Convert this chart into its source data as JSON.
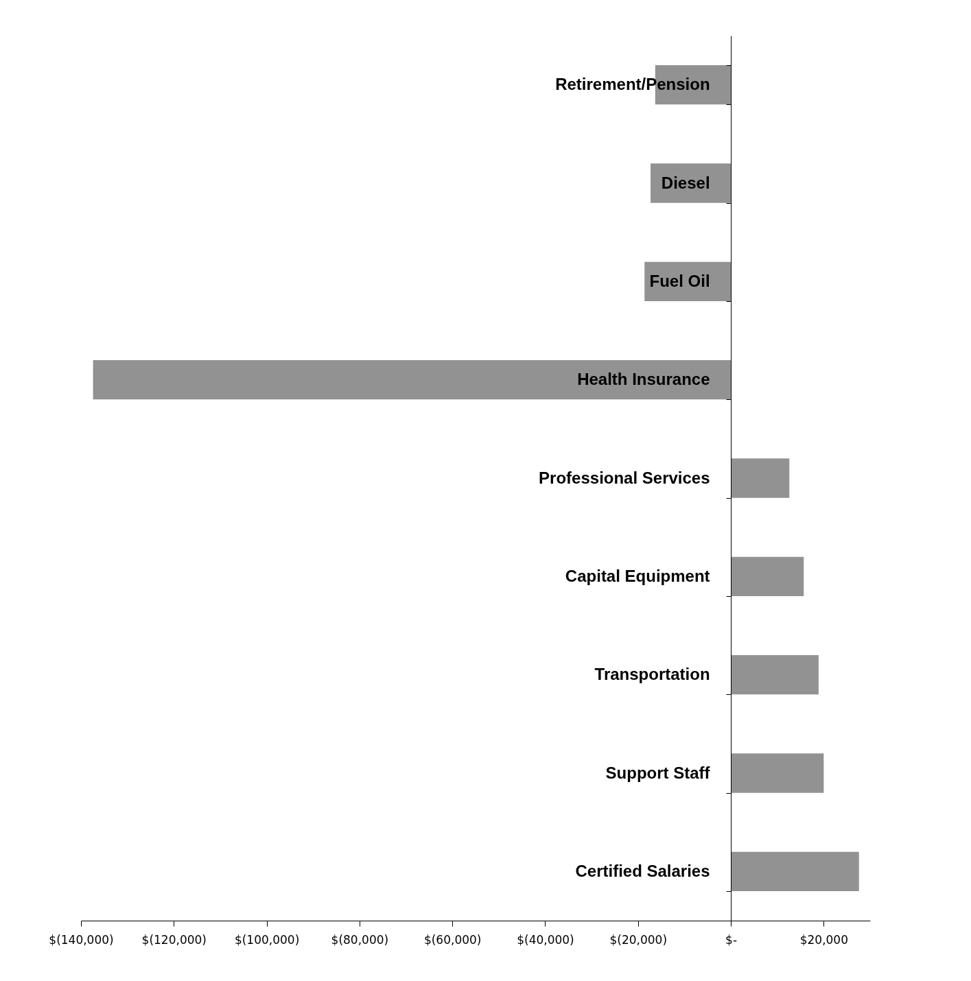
{
  "chart_data": {
    "type": "bar",
    "orientation": "horizontal",
    "categories": [
      "Retirement/Pension",
      "Diesel",
      "Fuel Oil",
      "Health Insurance",
      "Professional Services",
      "Capital Equipment",
      "Transportation",
      "Support Staff",
      "Certified Salaries"
    ],
    "values": [
      -16300,
      -17300,
      -18600,
      -137400,
      12600,
      15700,
      18900,
      20000,
      27600
    ],
    "color": "#7f7f7f",
    "xlim": [
      -140000,
      30000
    ],
    "xticks": [
      {
        "value": -140000,
        "label": "$(140,000)"
      },
      {
        "value": -120000,
        "label": "$(120,000)"
      },
      {
        "value": -100000,
        "label": "$(100,000)"
      },
      {
        "value": -80000,
        "label": "$(80,000)"
      },
      {
        "value": -60000,
        "label": "$(60,000)"
      },
      {
        "value": -40000,
        "label": "$(40,000)"
      },
      {
        "value": -20000,
        "label": "$(20,000)"
      },
      {
        "value": 0,
        "label": "$-"
      },
      {
        "value": 20000,
        "label": "$20,000"
      }
    ],
    "grid": false
  }
}
